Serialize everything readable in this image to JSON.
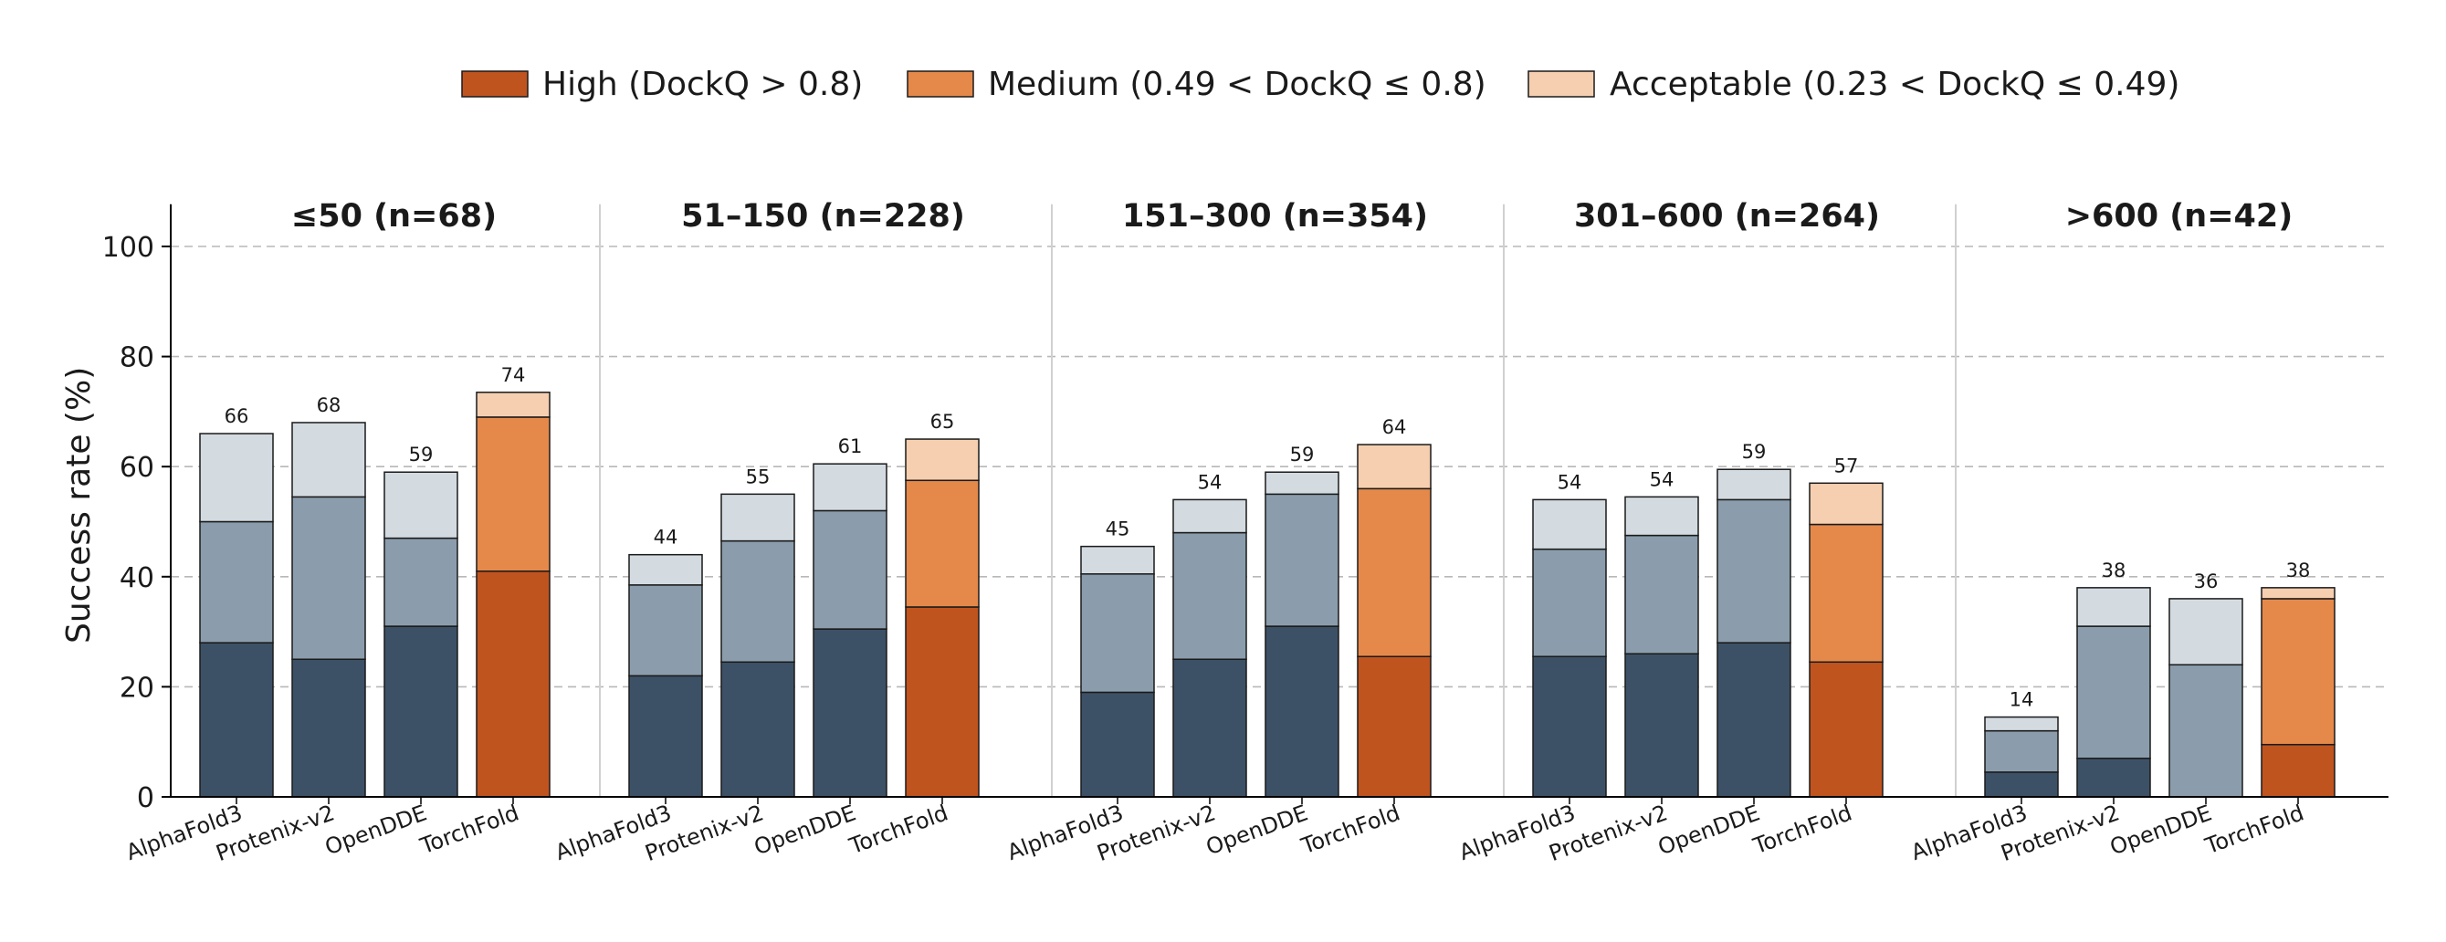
{
  "legend": [
    {
      "key": "high",
      "label": "High (DockQ > 0.8)",
      "color": "#c0541f"
    },
    {
      "key": "medium",
      "label": "Medium (0.49 < DockQ ≤ 0.8)",
      "color": "#e5894b"
    },
    {
      "key": "acceptable",
      "label": "Acceptable (0.23 < DockQ ≤ 0.49)",
      "color": "#f5cfb0"
    }
  ],
  "colors": {
    "baseline_high": "#3d5166",
    "baseline_medium": "#8b9dac",
    "baseline_acceptable": "#d3dbe1",
    "grid": "#b8b8b8",
    "divider": "#d0d0d0",
    "axis": "#000000",
    "edge": "#1a1a1a"
  },
  "chart_data": {
    "type": "bar",
    "stacked": true,
    "ylabel": "Success rate (%)",
    "ylim": [
      0,
      108
    ],
    "yticks": [
      0,
      20,
      40,
      60,
      80,
      100
    ],
    "grid": "horizontal dashed",
    "legend_position": "top-center",
    "categories": [
      "AlphaFold3",
      "Protenix-v2",
      "OpenDDE",
      "TorchFold"
    ],
    "highlight_model": "TorchFold",
    "panels": [
      {
        "title": "≤50  (n=68)",
        "bars": [
          {
            "model": "AlphaFold3",
            "high": 28,
            "medium": 22,
            "acceptable": 16,
            "total": "66"
          },
          {
            "model": "Protenix-v2",
            "high": 25,
            "medium": 29.5,
            "acceptable": 13.5,
            "total": "68"
          },
          {
            "model": "OpenDDE",
            "high": 31,
            "medium": 16,
            "acceptable": 12,
            "total": "59"
          },
          {
            "model": "TorchFold",
            "high": 41,
            "medium": 28,
            "acceptable": 4.5,
            "total": "74"
          }
        ]
      },
      {
        "title": "51–150  (n=228)",
        "bars": [
          {
            "model": "AlphaFold3",
            "high": 22,
            "medium": 16.5,
            "acceptable": 5.5,
            "total": "44"
          },
          {
            "model": "Protenix-v2",
            "high": 24.5,
            "medium": 22,
            "acceptable": 8.5,
            "total": "55"
          },
          {
            "model": "OpenDDE",
            "high": 30.5,
            "medium": 21.5,
            "acceptable": 8.5,
            "total": "61"
          },
          {
            "model": "TorchFold",
            "high": 34.5,
            "medium": 23,
            "acceptable": 7.5,
            "total": "65"
          }
        ]
      },
      {
        "title": "151–300  (n=354)",
        "bars": [
          {
            "model": "AlphaFold3",
            "high": 19,
            "medium": 21.5,
            "acceptable": 5,
            "total": "45"
          },
          {
            "model": "Protenix-v2",
            "high": 25,
            "medium": 23,
            "acceptable": 6,
            "total": "54"
          },
          {
            "model": "OpenDDE",
            "high": 31,
            "medium": 24,
            "acceptable": 4,
            "total": "59"
          },
          {
            "model": "TorchFold",
            "high": 25.5,
            "medium": 30.5,
            "acceptable": 8,
            "total": "64"
          }
        ]
      },
      {
        "title": "301–600  (n=264)",
        "bars": [
          {
            "model": "AlphaFold3",
            "high": 25.5,
            "medium": 19.5,
            "acceptable": 9,
            "total": "54"
          },
          {
            "model": "Protenix-v2",
            "high": 26,
            "medium": 21.5,
            "acceptable": 7,
            "total": "54"
          },
          {
            "model": "OpenDDE",
            "high": 28,
            "medium": 26,
            "acceptable": 5.5,
            "total": "59"
          },
          {
            "model": "TorchFold",
            "high": 24.5,
            "medium": 25,
            "acceptable": 7.5,
            "total": "57"
          }
        ]
      },
      {
        "title": ">600  (n=42)",
        "bars": [
          {
            "model": "AlphaFold3",
            "high": 4.5,
            "medium": 7.5,
            "acceptable": 2.5,
            "total": "14"
          },
          {
            "model": "Protenix-v2",
            "high": 7,
            "medium": 24,
            "acceptable": 7,
            "total": "38"
          },
          {
            "model": "OpenDDE",
            "high": 0,
            "medium": 24,
            "acceptable": 12,
            "total": "36"
          },
          {
            "model": "TorchFold",
            "high": 9.5,
            "medium": 26.5,
            "acceptable": 2,
            "total": "38"
          }
        ]
      }
    ]
  }
}
